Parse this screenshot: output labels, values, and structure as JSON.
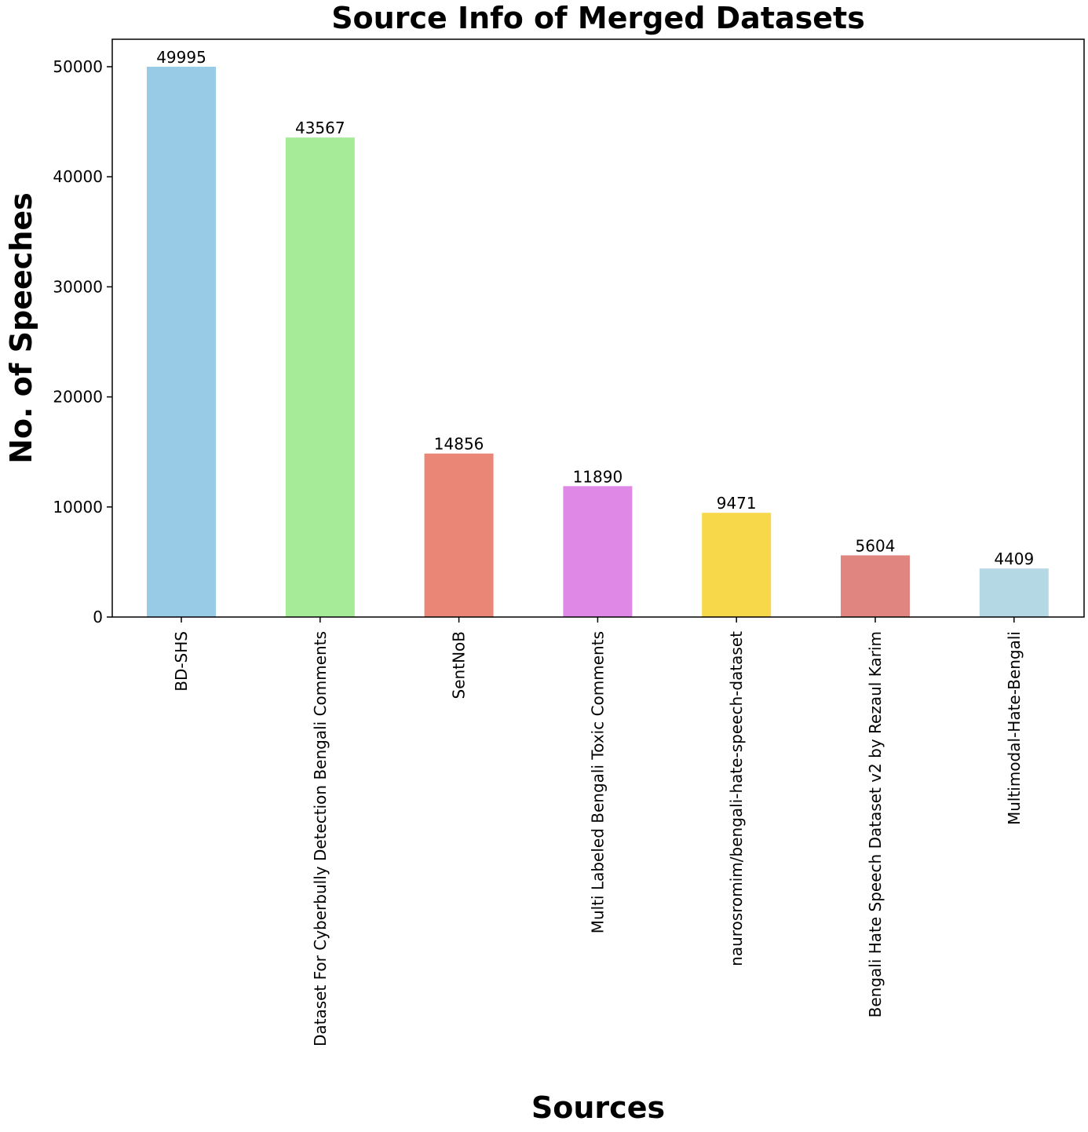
{
  "chart_data": {
    "type": "bar",
    "title": "Source Info of Merged Datasets",
    "xlabel": "Sources",
    "ylabel": "No. of Speeches",
    "categories": [
      "BD-SHS",
      "Dataset For Cyberbully Detection Bengali Comments",
      "SentNoB",
      "Multi Labeled Bengali Toxic Comments",
      "naurosromim/bengali-hate-speech-dataset",
      "Bengali Hate Speech Dataset v2 by Rezaul Karim",
      "Multimodal-Hate-Bengali"
    ],
    "values": [
      49995,
      43567,
      14856,
      11890,
      9471,
      5604,
      4409
    ],
    "data_labels": [
      "49995",
      "43567",
      "14856",
      "11890",
      "9471",
      "5604",
      "4409"
    ],
    "colors": [
      "#97cbe6",
      "#a6eb98",
      "#e98676",
      "#df88e6",
      "#f7d84b",
      "#e08580",
      "#b5d8e5"
    ],
    "yticks": [
      0,
      10000,
      20000,
      30000,
      40000,
      50000
    ],
    "ytick_labels": [
      "0",
      "10000",
      "20000",
      "30000",
      "40000",
      "50000"
    ],
    "ylim": [
      0,
      52494.75
    ],
    "grid": false,
    "legend": "none"
  }
}
